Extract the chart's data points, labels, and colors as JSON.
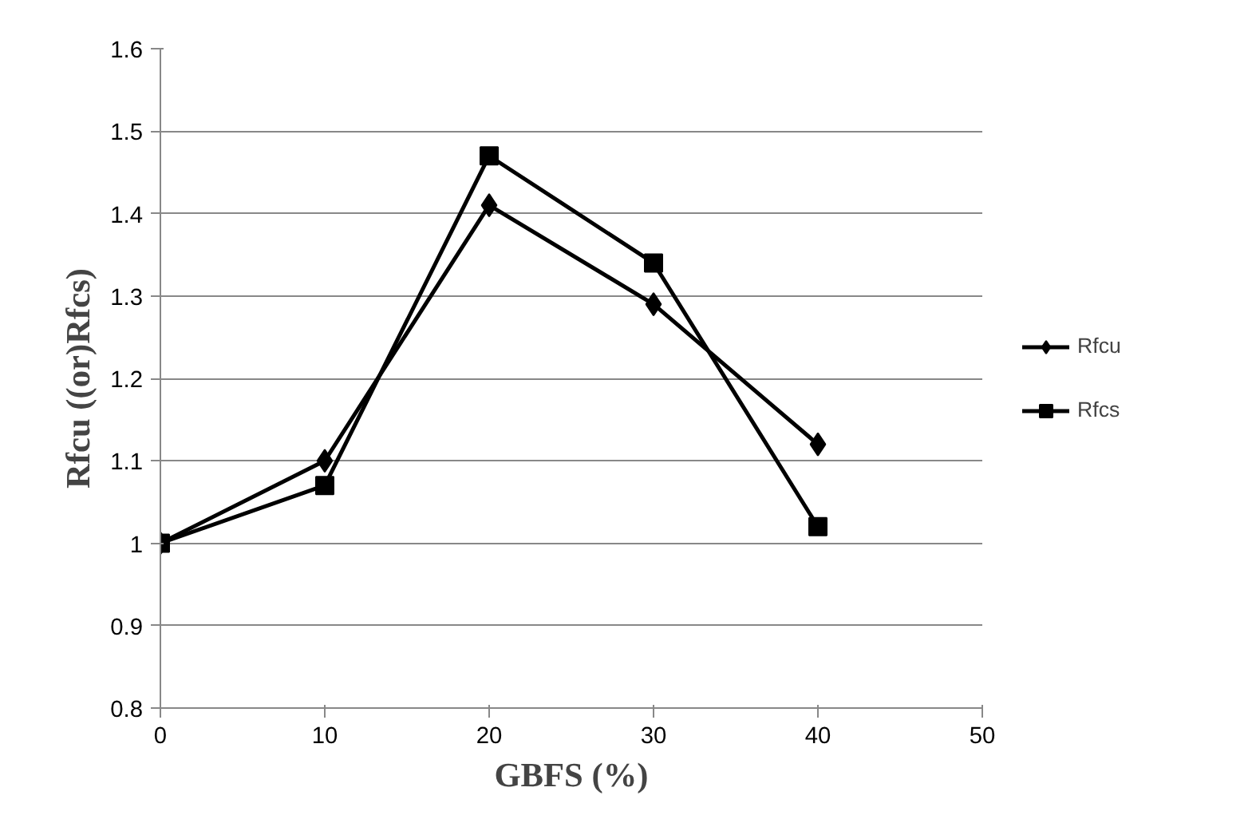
{
  "chart_data": {
    "type": "line",
    "xlabel": "GBFS (%)",
    "ylabel": "Rfcu ((or)Rfcs)",
    "x": [
      0,
      10,
      20,
      30,
      40
    ],
    "series": [
      {
        "name": "Rfcu",
        "color": "#000000",
        "values": [
          1.0,
          1.1,
          1.41,
          1.29,
          1.12
        ],
        "marker": "diamond"
      },
      {
        "name": "Rfcs",
        "color": "#000000",
        "values": [
          1.0,
          1.07,
          1.47,
          1.34,
          1.02
        ],
        "marker": "square"
      }
    ],
    "xlim": [
      0,
      50
    ],
    "xticks": [
      0,
      10,
      20,
      30,
      40,
      50
    ],
    "ylim": [
      0.8,
      1.6
    ],
    "yticks": [
      0.8,
      0.9,
      1,
      1.1,
      1.2,
      1.3,
      1.4,
      1.5,
      1.6
    ],
    "grid": "y",
    "legend": "right",
    "line_style": "solid"
  }
}
